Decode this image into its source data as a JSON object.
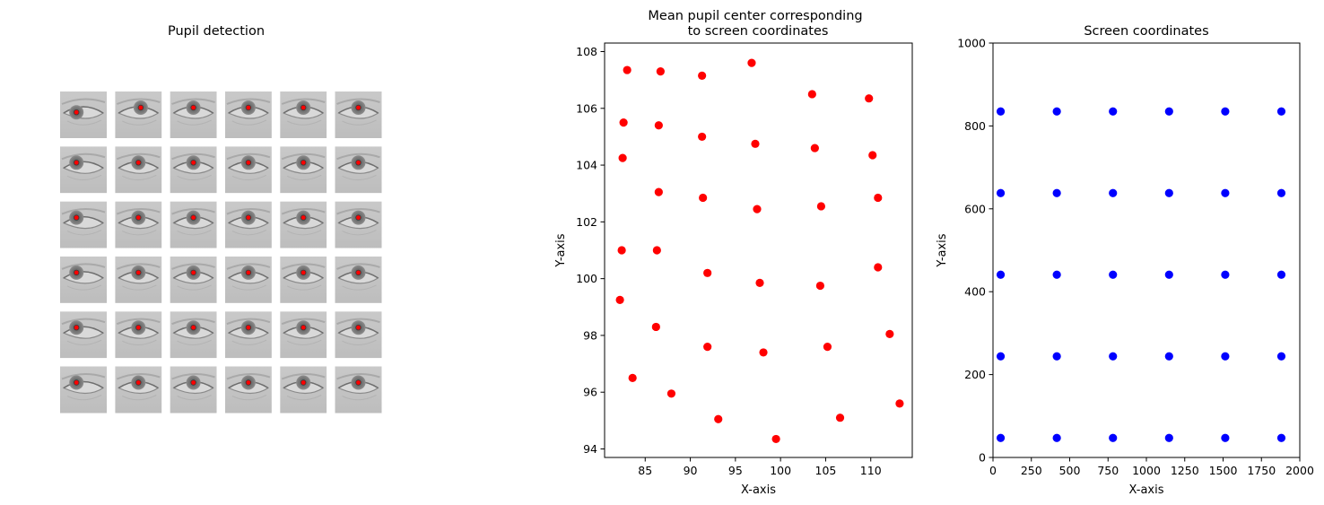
{
  "figure": {
    "panel1_title": "Pupil detection",
    "panel2_title_line1": "Mean pupil center corresponding",
    "panel2_title_line2": "to screen coordinates",
    "panel3_title": "Screen coordinates"
  },
  "colors": {
    "pupil_marker": "#ff0000",
    "mean_series": "#ff0000",
    "screen_series": "#0000ff"
  },
  "eye_grid": {
    "rows": 6,
    "cols": 6,
    "pupil_offsets": [
      [
        [
          -0.3,
          0.2
        ],
        [
          0.1,
          0.0
        ],
        [
          0.0,
          0.0
        ],
        [
          0.0,
          0.0
        ],
        [
          0.0,
          0.0
        ],
        [
          0.0,
          0.0
        ]
      ],
      [
        [
          -0.3,
          0.0
        ],
        [
          0.0,
          0.0
        ],
        [
          0.0,
          0.0
        ],
        [
          0.0,
          0.0
        ],
        [
          0.0,
          0.0
        ],
        [
          0.0,
          0.0
        ]
      ],
      [
        [
          -0.3,
          0.0
        ],
        [
          0.0,
          0.0
        ],
        [
          0.0,
          0.0
        ],
        [
          0.0,
          0.0
        ],
        [
          0.0,
          0.0
        ],
        [
          0.0,
          0.0
        ]
      ],
      [
        [
          -0.3,
          0.0
        ],
        [
          0.0,
          0.0
        ],
        [
          0.0,
          0.0
        ],
        [
          0.0,
          0.0
        ],
        [
          0.0,
          0.0
        ],
        [
          0.0,
          0.0
        ]
      ],
      [
        [
          -0.3,
          0.0
        ],
        [
          0.0,
          0.0
        ],
        [
          0.0,
          0.0
        ],
        [
          0.0,
          0.0
        ],
        [
          0.0,
          0.0
        ],
        [
          0.0,
          0.0
        ]
      ],
      [
        [
          -0.3,
          0.0
        ],
        [
          0.0,
          0.0
        ],
        [
          0.0,
          0.0
        ],
        [
          0.0,
          0.0
        ],
        [
          0.0,
          0.0
        ],
        [
          0.0,
          0.0
        ]
      ]
    ]
  },
  "chart_data": [
    {
      "type": "scatter",
      "title": "Mean pupil center corresponding\nto screen coordinates",
      "xlabel": "X-axis",
      "ylabel": "Y-axis",
      "xlim": [
        80.5,
        114.6
      ],
      "ylim": [
        93.7,
        108.3
      ],
      "xticks": [
        85,
        90,
        95,
        100,
        105,
        110
      ],
      "yticks": [
        94,
        96,
        98,
        100,
        102,
        104,
        106,
        108
      ],
      "series": [
        {
          "color": "#ff0000",
          "points": [
            [
              83.0,
              107.35
            ],
            [
              86.7,
              107.3
            ],
            [
              91.3,
              107.15
            ],
            [
              96.8,
              107.6
            ],
            [
              103.5,
              106.5
            ],
            [
              109.8,
              106.35
            ],
            [
              82.6,
              105.5
            ],
            [
              86.5,
              105.4
            ],
            [
              91.3,
              105.0
            ],
            [
              97.2,
              104.75
            ],
            [
              103.8,
              104.6
            ],
            [
              110.2,
              104.35
            ],
            [
              82.5,
              104.25
            ],
            [
              86.5,
              103.05
            ],
            [
              91.4,
              102.85
            ],
            [
              97.4,
              102.45
            ],
            [
              104.5,
              102.55
            ],
            [
              110.8,
              102.85
            ],
            [
              82.4,
              101.0
            ],
            [
              86.3,
              101.0
            ],
            [
              91.9,
              100.2
            ],
            [
              97.7,
              99.85
            ],
            [
              104.4,
              99.75
            ],
            [
              110.8,
              100.4
            ],
            [
              82.2,
              99.25
            ],
            [
              86.2,
              98.3
            ],
            [
              91.9,
              97.6
            ],
            [
              98.1,
              97.4
            ],
            [
              105.2,
              97.6
            ],
            [
              112.1,
              98.05
            ],
            [
              83.6,
              96.5
            ],
            [
              87.9,
              95.95
            ],
            [
              93.1,
              95.05
            ],
            [
              99.5,
              94.35
            ],
            [
              106.6,
              95.1
            ],
            [
              113.2,
              95.6
            ]
          ]
        }
      ]
    },
    {
      "type": "scatter",
      "title": "Screen coordinates",
      "xlabel": "X-axis",
      "ylabel": "Y-axis",
      "xlim": [
        0,
        2000
      ],
      "ylim": [
        0,
        1000
      ],
      "xticks": [
        0,
        250,
        500,
        750,
        1000,
        1250,
        1500,
        1750,
        2000
      ],
      "yticks": [
        0,
        200,
        400,
        600,
        800,
        1000
      ],
      "series": [
        {
          "color": "#0000ff",
          "points": [
            [
              50,
              835
            ],
            [
              416,
              835
            ],
            [
              782,
              835
            ],
            [
              1148,
              835
            ],
            [
              1514,
              835
            ],
            [
              1880,
              835
            ],
            [
              50,
              638
            ],
            [
              416,
              638
            ],
            [
              782,
              638
            ],
            [
              1148,
              638
            ],
            [
              1514,
              638
            ],
            [
              1880,
              638
            ],
            [
              50,
              441
            ],
            [
              416,
              441
            ],
            [
              782,
              441
            ],
            [
              1148,
              441
            ],
            [
              1514,
              441
            ],
            [
              1880,
              441
            ],
            [
              50,
              244
            ],
            [
              416,
              244
            ],
            [
              782,
              244
            ],
            [
              1148,
              244
            ],
            [
              1514,
              244
            ],
            [
              1880,
              244
            ],
            [
              50,
              47
            ],
            [
              416,
              47
            ],
            [
              782,
              47
            ],
            [
              1148,
              47
            ],
            [
              1514,
              47
            ],
            [
              1880,
              47
            ]
          ]
        }
      ]
    }
  ]
}
